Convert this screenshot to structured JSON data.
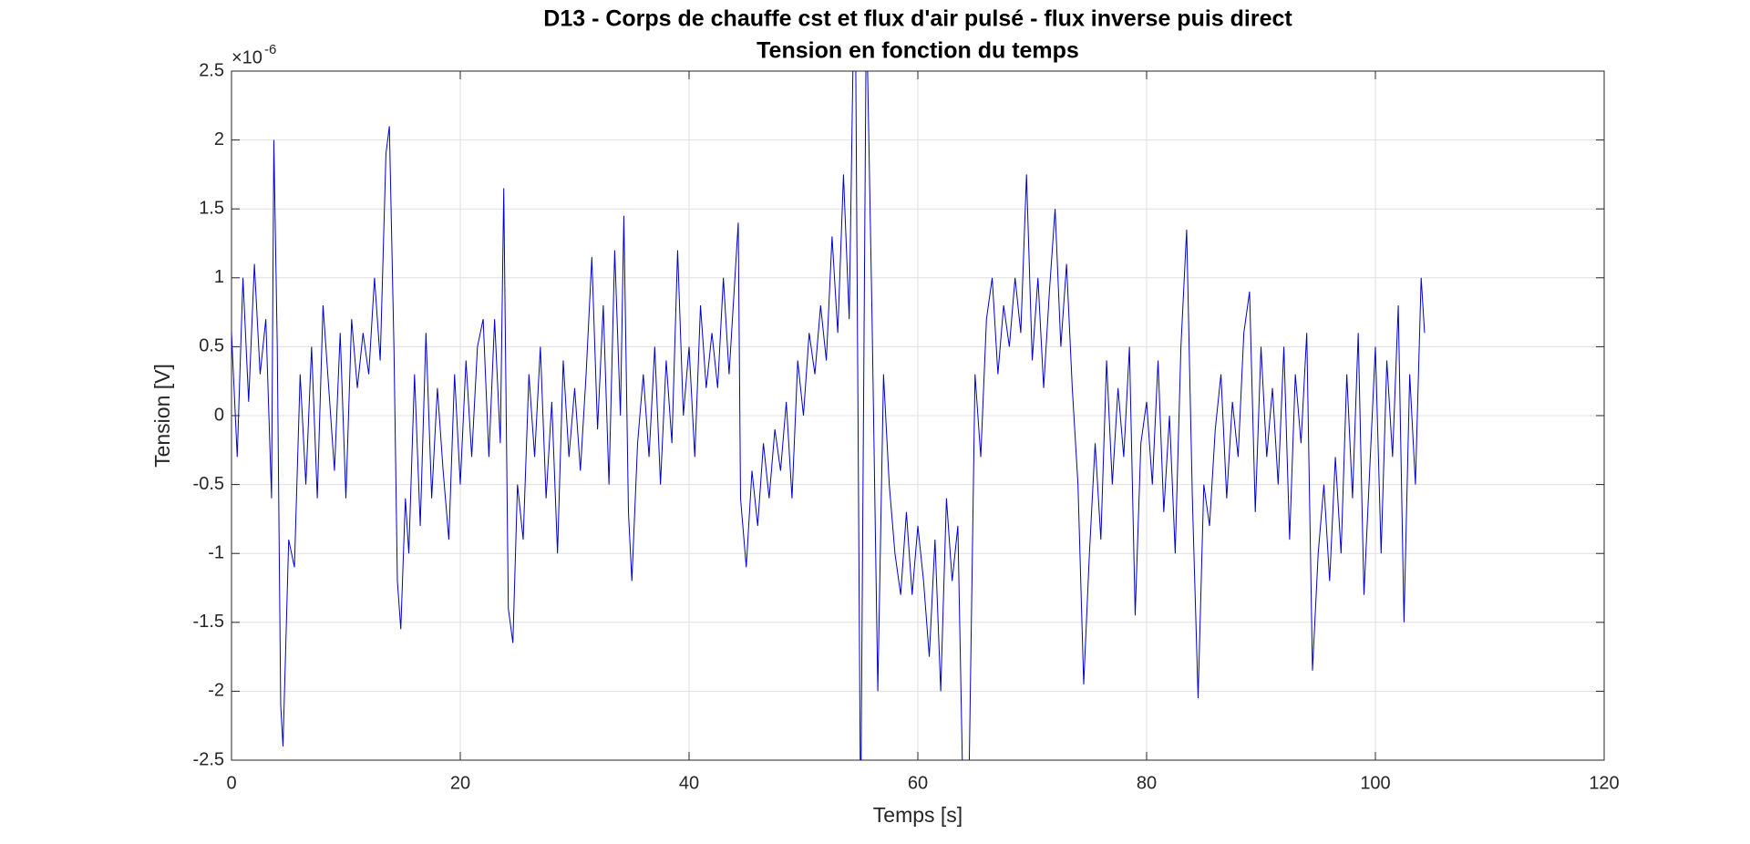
{
  "chart_data": {
    "type": "line",
    "title": "D13 - Corps de chauffe cst et flux d'air pulsé - flux inverse puis direct",
    "subtitle": "Tension en fonction du temps",
    "x_label": "Temps [s]",
    "y_label": "Tension [V]",
    "y_scale_base": "×10",
    "y_scale_exponent": "-6",
    "xlim": [
      0,
      120
    ],
    "xticks": [
      0,
      20,
      40,
      60,
      80,
      100,
      120
    ],
    "ylim": [
      -2.5,
      2.5
    ],
    "yticks": [
      -2.5,
      -2,
      -1.5,
      -1,
      -0.5,
      0,
      0.5,
      1,
      1.5,
      2,
      2.5
    ],
    "grid": true,
    "series": [
      {
        "color": "#0000cd",
        "x": [
          0,
          0.5,
          1,
          1.5,
          2,
          2.5,
          3,
          3.5,
          3.7,
          4,
          4.3,
          4.5,
          5,
          5.5,
          6,
          6.5,
          7,
          7.5,
          8,
          8.5,
          9,
          9.5,
          10,
          10.5,
          11,
          11.5,
          12,
          12.5,
          13,
          13.5,
          13.8,
          14.2,
          14.5,
          14.8,
          15.2,
          15.5,
          16,
          16.5,
          17,
          17.5,
          18,
          18.5,
          19,
          19.5,
          20,
          20.5,
          21,
          21.5,
          22,
          22.5,
          23,
          23.5,
          23.8,
          24.2,
          24.6,
          25,
          25.5,
          26,
          26.5,
          27,
          27.5,
          28,
          28.5,
          29,
          29.5,
          30,
          30.5,
          31,
          31.5,
          32,
          32.5,
          33,
          33.5,
          34,
          34.3,
          34.7,
          35,
          35.5,
          36,
          36.5,
          37,
          37.5,
          38,
          38.5,
          39,
          39.5,
          40,
          40.5,
          41,
          41.5,
          42,
          42.5,
          43,
          43.5,
          44.3,
          44.5,
          45,
          45.5,
          46,
          46.5,
          47,
          47.5,
          48,
          48.5,
          49,
          49.5,
          50,
          50.5,
          51,
          51.5,
          52,
          52.5,
          53,
          53.5,
          54,
          54.5,
          55,
          55.5,
          56,
          56.5,
          57,
          57.5,
          58,
          58.5,
          59,
          59.5,
          60,
          60.5,
          61,
          61.5,
          62,
          62.5,
          63,
          63.5,
          64,
          64.5,
          65,
          65.5,
          66,
          66.5,
          67,
          67.5,
          68,
          68.5,
          69,
          69.5,
          70,
          70.5,
          71,
          71.5,
          72,
          72.5,
          73,
          73.5,
          74,
          74.5,
          75,
          75.5,
          76,
          76.5,
          77,
          77.5,
          78,
          78.5,
          79,
          79.5,
          80,
          80.5,
          81,
          81.5,
          82,
          82.5,
          83,
          83.5,
          84,
          84.5,
          85,
          85.5,
          86,
          86.5,
          87,
          87.5,
          88,
          88.5,
          89,
          89.5,
          90,
          90.5,
          91,
          91.5,
          92,
          92.5,
          93,
          93.5,
          94,
          94.5,
          95,
          95.5,
          96,
          96.5,
          97,
          97.5,
          98,
          98.5,
          99,
          99.5,
          100,
          100.5,
          101,
          101.5,
          102,
          102.5,
          103,
          103.5,
          104,
          104.3
        ],
        "values": [
          0.6,
          -0.3,
          1.0,
          0.1,
          1.1,
          0.3,
          0.7,
          -0.6,
          2.0,
          0.5,
          -2.1,
          -2.4,
          -0.9,
          -1.1,
          0.3,
          -0.5,
          0.5,
          -0.6,
          0.8,
          0.2,
          -0.4,
          0.6,
          -0.6,
          0.7,
          0.2,
          0.6,
          0.3,
          1.0,
          0.4,
          1.9,
          2.1,
          0.5,
          -1.2,
          -1.55,
          -0.6,
          -1.0,
          0.3,
          -0.8,
          0.6,
          -0.6,
          0.2,
          -0.4,
          -0.9,
          0.3,
          -0.5,
          0.4,
          -0.3,
          0.5,
          0.7,
          -0.3,
          0.7,
          -0.2,
          1.65,
          -1.4,
          -1.65,
          -0.5,
          -0.9,
          0.3,
          -0.3,
          0.5,
          -0.6,
          0.1,
          -1.0,
          0.4,
          -0.3,
          0.2,
          -0.4,
          0.3,
          1.15,
          -0.1,
          0.8,
          -0.5,
          1.2,
          0.0,
          1.45,
          -0.7,
          -1.2,
          -0.2,
          0.3,
          -0.3,
          0.5,
          -0.5,
          0.4,
          -0.2,
          1.2,
          0.0,
          0.5,
          -0.3,
          0.8,
          0.2,
          0.6,
          0.2,
          1.0,
          0.3,
          1.4,
          -0.6,
          -1.1,
          -0.4,
          -0.8,
          -0.2,
          -0.6,
          -0.1,
          -0.4,
          0.1,
          -0.6,
          0.4,
          0.0,
          0.6,
          0.3,
          0.8,
          0.4,
          1.3,
          0.6,
          1.75,
          0.7,
          3.5,
          -3.0,
          3.0,
          0.7,
          -2.0,
          0.3,
          -0.5,
          -1.0,
          -1.3,
          -0.7,
          -1.3,
          -0.8,
          -1.2,
          -1.75,
          -0.9,
          -2.0,
          -0.6,
          -1.2,
          -0.8,
          -3.0,
          -2.5,
          0.3,
          -0.3,
          0.7,
          1.0,
          0.3,
          0.8,
          0.5,
          1.0,
          0.6,
          1.75,
          0.4,
          1.0,
          0.2,
          0.9,
          1.5,
          0.5,
          1.1,
          0.2,
          -0.5,
          -1.95,
          -1.0,
          -0.2,
          -0.9,
          0.4,
          -0.5,
          0.2,
          -0.3,
          0.5,
          -1.45,
          -0.2,
          0.1,
          -0.5,
          0.4,
          -0.7,
          0.0,
          -1.0,
          0.5,
          1.35,
          -0.6,
          -2.05,
          -0.5,
          -0.8,
          -0.1,
          0.3,
          -0.6,
          0.1,
          -0.3,
          0.6,
          0.9,
          -0.7,
          0.5,
          -0.3,
          0.2,
          -0.5,
          0.5,
          -0.9,
          0.3,
          -0.2,
          0.6,
          -1.85,
          -1.0,
          -0.5,
          -1.2,
          -0.3,
          -1.0,
          0.3,
          -0.6,
          0.6,
          -1.3,
          -0.4,
          0.5,
          -1.0,
          0.4,
          -0.3,
          0.8,
          -1.5,
          0.3,
          -0.5,
          1.0,
          0.6
        ]
      }
    ]
  }
}
